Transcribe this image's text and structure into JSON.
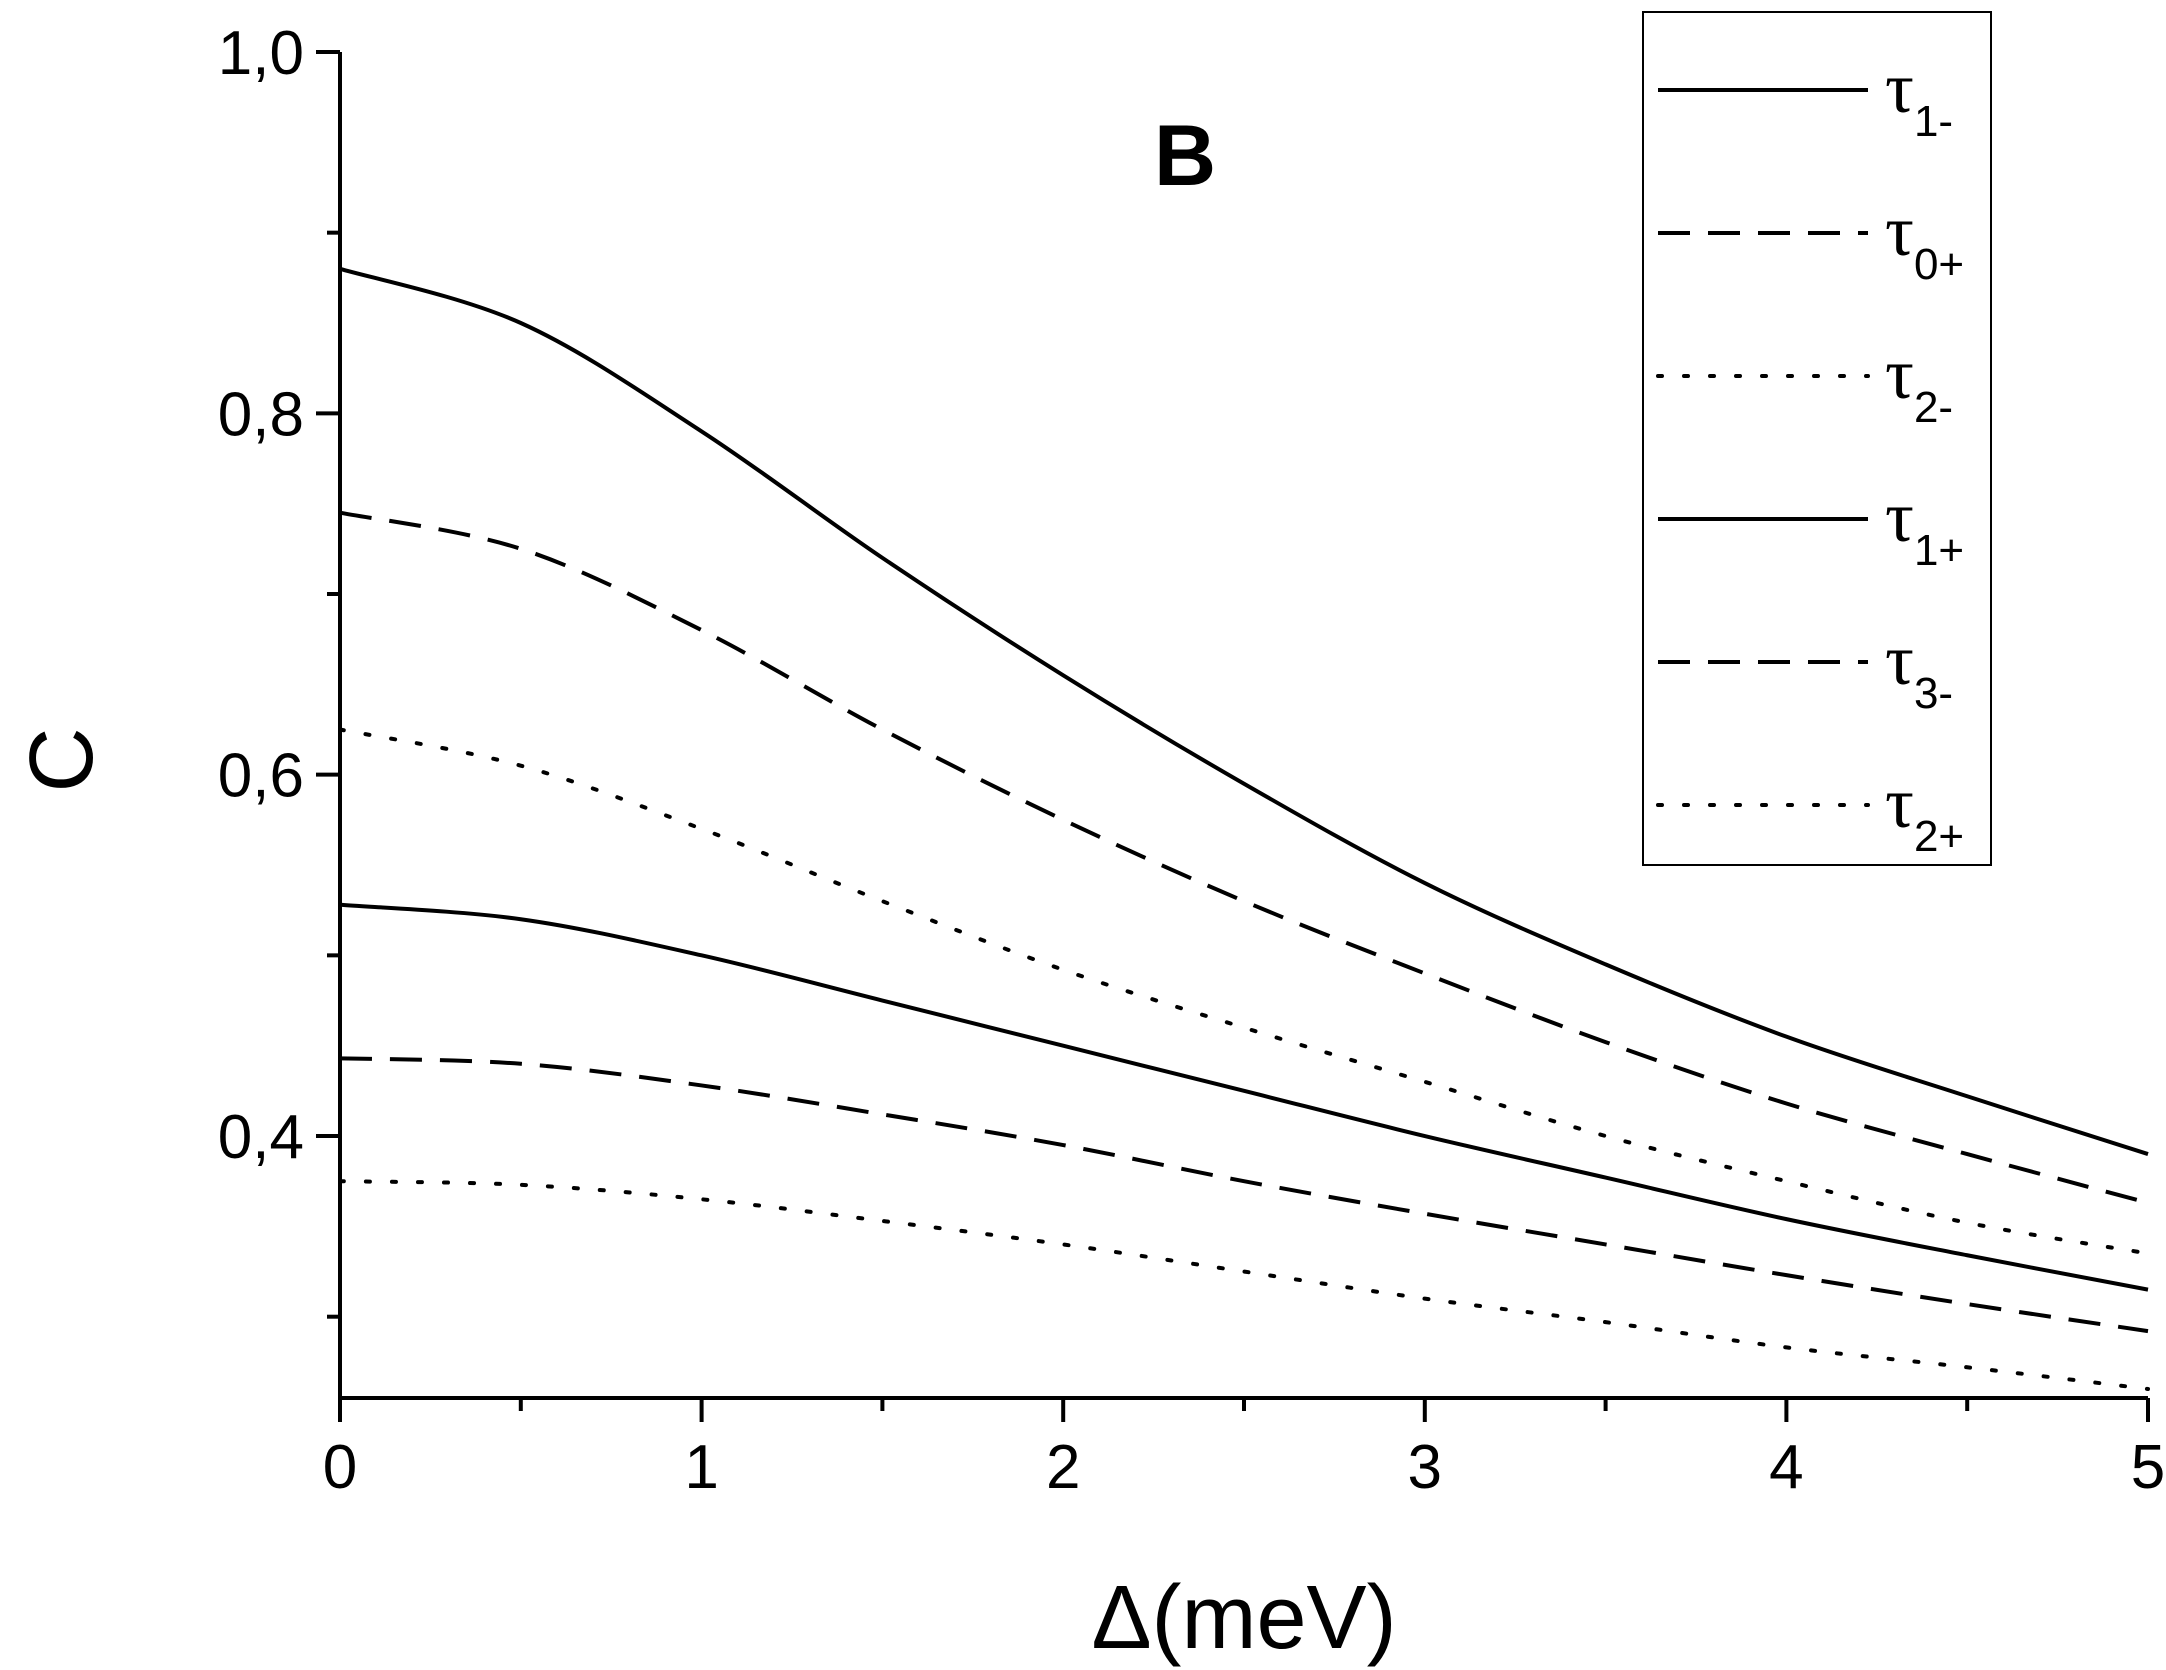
{
  "chart_data": {
    "type": "line",
    "panel_label": "B",
    "xlabel": "Δ(meV)",
    "ylabel": "C",
    "xlim": [
      0,
      5
    ],
    "ylim": [
      0.255,
      1.0
    ],
    "x_ticks_major": [
      0,
      1,
      2,
      3,
      4,
      5
    ],
    "x_tick_labels": [
      "0",
      "1",
      "2",
      "3",
      "4",
      "5"
    ],
    "x_ticks_minor": [
      0.5,
      1.5,
      2.5,
      3.5,
      4.5
    ],
    "y_ticks_major": [
      0.4,
      0.6,
      0.8,
      1.0
    ],
    "y_tick_labels": [
      "0,4",
      "0,6",
      "0,8",
      "1,0"
    ],
    "y_ticks_minor": [
      0.3,
      0.5,
      0.7,
      0.9
    ],
    "grid": false,
    "legend_position": "top-right",
    "x": [
      0,
      0.5,
      1,
      1.5,
      2,
      2.5,
      3,
      3.5,
      4,
      4.5,
      5
    ],
    "series": [
      {
        "name": "τ1-",
        "symbol": "τ",
        "subscript": "1-",
        "style": "solid",
        "values": [
          0.88,
          0.85,
          0.79,
          0.72,
          0.655,
          0.595,
          0.54,
          0.495,
          0.455,
          0.422,
          0.39
        ]
      },
      {
        "name": "τ0+",
        "symbol": "τ",
        "subscript": "0+",
        "style": "dashed",
        "values": [
          0.745,
          0.725,
          0.68,
          0.625,
          0.575,
          0.53,
          0.49,
          0.452,
          0.418,
          0.39,
          0.363
        ]
      },
      {
        "name": "τ2-",
        "symbol": "τ",
        "subscript": "2-",
        "style": "dotted",
        "values": [
          0.625,
          0.605,
          0.57,
          0.53,
          0.492,
          0.46,
          0.43,
          0.4,
          0.375,
          0.352,
          0.335
        ]
      },
      {
        "name": "τ1+",
        "symbol": "τ",
        "subscript": "1+",
        "style": "solid",
        "values": [
          0.528,
          0.52,
          0.5,
          0.475,
          0.45,
          0.425,
          0.4,
          0.377,
          0.354,
          0.334,
          0.315
        ]
      },
      {
        "name": "τ3-",
        "symbol": "τ",
        "subscript": "3-",
        "style": "dashed",
        "values": [
          0.443,
          0.44,
          0.428,
          0.412,
          0.395,
          0.375,
          0.357,
          0.34,
          0.323,
          0.307,
          0.292
        ]
      },
      {
        "name": "τ2+",
        "symbol": "τ",
        "subscript": "2+",
        "style": "dotted",
        "values": [
          0.375,
          0.373,
          0.365,
          0.353,
          0.34,
          0.325,
          0.31,
          0.297,
          0.283,
          0.272,
          0.26
        ]
      }
    ]
  }
}
